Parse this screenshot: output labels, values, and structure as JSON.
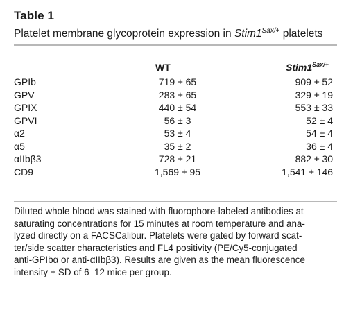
{
  "table_label": "Table 1",
  "caption": {
    "prefix": "Platelet membrane glycoprotein expression in ",
    "gene": "Stim1",
    "superscript": "Sax/+",
    "suffix": " platelets"
  },
  "columns": {
    "wt": "WT",
    "stim_gene": "Stim1",
    "stim_superscript": "Sax/+"
  },
  "rows": [
    {
      "label": "GPIb",
      "wt": "719 ± 65",
      "stim": "909 ± 52"
    },
    {
      "label": "GPV",
      "wt": "283 ± 65",
      "stim": "329 ± 19"
    },
    {
      "label": "GPIX",
      "wt": "440 ± 54",
      "stim": "553 ± 33"
    },
    {
      "label": "GPVI",
      "wt": "56 ± 3",
      "stim": "52 ± 4"
    },
    {
      "label": "α2",
      "wt": "53 ± 4",
      "stim": "54 ± 4"
    },
    {
      "label": "α5",
      "wt": "35 ± 2",
      "stim": "36 ± 4"
    },
    {
      "label": "αIIbβ3",
      "wt": "728 ± 21",
      "stim": "882 ± 30"
    },
    {
      "label": "CD9",
      "wt": "1,569 ± 95",
      "stim": "1,541 ± 146"
    }
  ],
  "footnote_lines": [
    "Diluted whole blood was stained with fluorophore-labeled antibodies at",
    "saturating concentrations for 15 minutes at room temperature and ana-",
    "lyzed directly on a FACSCalibur. Platelets were gated by forward scat-",
    "ter/side scatter characteristics and FL4 positivity (PE/Cy5-conjugated",
    "anti-GPIbα or anti-αIIbβ3). Results are given as the mean fluorescence",
    "intensity ± SD of 6–12 mice per group."
  ]
}
